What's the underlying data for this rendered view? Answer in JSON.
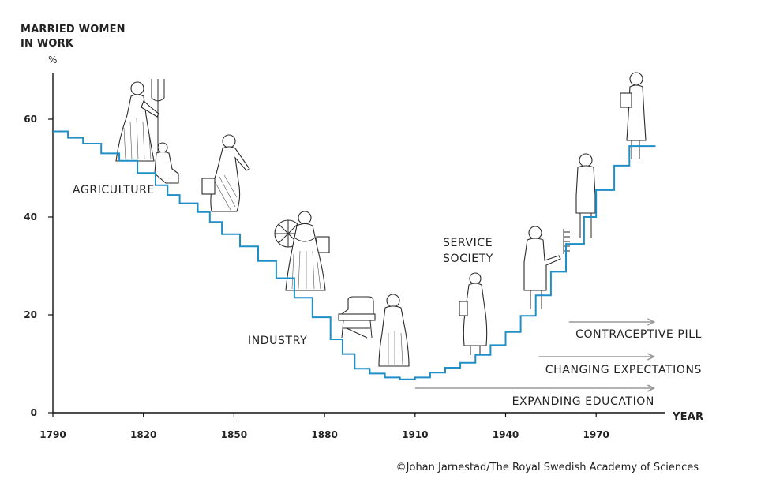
{
  "chart_data": {
    "type": "line",
    "step": true,
    "ylabel_lines": [
      "MARRIED WOMEN",
      "IN WORK"
    ],
    "yunit": "%",
    "xlabel": "YEAR",
    "xlim": [
      1790,
      1990
    ],
    "ylim": [
      0,
      70
    ],
    "xticks": [
      1790,
      1820,
      1850,
      1880,
      1910,
      1940,
      1970
    ],
    "yticks": [
      0,
      20,
      40,
      60
    ],
    "line_color": "#1f8fc8",
    "series": [
      {
        "x": [
          1790,
          1795,
          1800,
          1806,
          1812,
          1818,
          1824,
          1828,
          1832,
          1838,
          1842,
          1846,
          1852,
          1858,
          1864,
          1870,
          1876,
          1882,
          1886,
          1890,
          1895,
          1900,
          1905,
          1910,
          1915,
          1920,
          1925,
          1930,
          1935,
          1940,
          1945,
          1950,
          1955,
          1960,
          1966,
          1970,
          1976,
          1981,
          1986
        ],
        "y": [
          57.5,
          56.2,
          55.0,
          53.0,
          51.5,
          49.0,
          46.5,
          44.5,
          42.8,
          41.0,
          39.0,
          36.5,
          34.0,
          31.0,
          27.5,
          23.5,
          19.5,
          15.0,
          12.0,
          9.0,
          8.0,
          7.2,
          6.8,
          7.2,
          8.2,
          9.2,
          10.2,
          11.8,
          13.8,
          16.5,
          19.8,
          24.0,
          28.8,
          34.5,
          40.0,
          45.5,
          50.5,
          54.5,
          54.5
        ]
      }
    ],
    "eras": {
      "agriculture": "AGRICULTURE",
      "industry": "INDUSTRY",
      "service_line1": "SERVICE",
      "service_line2": "SOCIETY"
    },
    "factors": [
      {
        "label": "CONTRACEPTIVE PILL",
        "from_year": 1961,
        "to_year": 1986
      },
      {
        "label": "CHANGING EXPECTATIONS",
        "from_year": 1951,
        "to_year": 1986
      },
      {
        "label": "EXPANDING EDUCATION",
        "from_year": 1910,
        "to_year": 1986
      }
    ],
    "arrow_color": "#999999"
  },
  "credit": "©Johan Jarnestad/The Royal Swedish Academy of Sciences"
}
